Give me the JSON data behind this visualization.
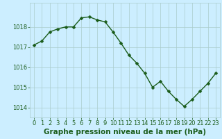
{
  "x": [
    0,
    1,
    2,
    3,
    4,
    5,
    6,
    7,
    8,
    9,
    10,
    11,
    12,
    13,
    14,
    15,
    16,
    17,
    18,
    19,
    20,
    21,
    22,
    23
  ],
  "y": [
    1017.1,
    1017.3,
    1017.75,
    1017.9,
    1018.0,
    1018.0,
    1018.45,
    1018.5,
    1018.35,
    1018.25,
    1017.75,
    1017.2,
    1016.6,
    1016.2,
    1015.7,
    1015.0,
    1015.3,
    1014.8,
    1014.4,
    1014.05,
    1014.4,
    1014.8,
    1015.2,
    1015.7
  ],
  "line_color": "#1a5c1a",
  "marker": "D",
  "marker_size": 2.5,
  "bg_color": "#cceeff",
  "grid_color": "#aacccc",
  "xlabel": "Graphe pression niveau de la mer (hPa)",
  "xlabel_color": "#1a5c1a",
  "xlabel_fontsize": 7.5,
  "tick_color": "#1a5c1a",
  "tick_fontsize": 6,
  "ylim": [
    1013.5,
    1019.2
  ],
  "yticks": [
    1014,
    1015,
    1016,
    1017,
    1018
  ],
  "xlim": [
    -0.5,
    23.5
  ],
  "line_width": 1.0,
  "bottom_bar_color": "#cceeff"
}
